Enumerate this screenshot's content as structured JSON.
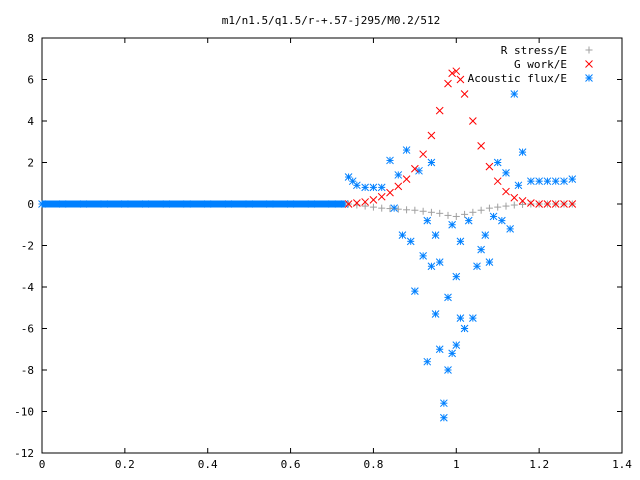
{
  "chart_data": {
    "type": "scatter",
    "title": "m1/n1.5/q1.5/r-+.57-j295/M0.2/512",
    "xlabel": "",
    "ylabel": "",
    "xlim": [
      0,
      1.4
    ],
    "ylim": [
      -12,
      8
    ],
    "x_ticks": [
      "0",
      "0.2",
      "0.4",
      "0.6",
      "0.8",
      "1",
      "1.2",
      "1.4"
    ],
    "y_ticks": [
      "8",
      "6",
      "4",
      "2",
      "0",
      "-2",
      "-4",
      "-6",
      "-8",
      "-10",
      "-12"
    ],
    "grid": false,
    "legend_position": "top-right",
    "series": [
      {
        "name": "R stress/E",
        "marker": "plus",
        "color": "#a0a0a0",
        "points": [
          [
            0.74,
            0.0
          ],
          [
            0.76,
            -0.05
          ],
          [
            0.78,
            -0.1
          ],
          [
            0.8,
            -0.15
          ],
          [
            0.82,
            -0.2
          ],
          [
            0.84,
            -0.22
          ],
          [
            0.86,
            -0.25
          ],
          [
            0.88,
            -0.28
          ],
          [
            0.9,
            -0.3
          ],
          [
            0.92,
            -0.35
          ],
          [
            0.94,
            -0.4
          ],
          [
            0.96,
            -0.45
          ],
          [
            0.98,
            -0.55
          ],
          [
            1.0,
            -0.6
          ],
          [
            1.02,
            -0.5
          ],
          [
            1.04,
            -0.4
          ],
          [
            1.06,
            -0.3
          ],
          [
            1.08,
            -0.2
          ],
          [
            1.1,
            -0.15
          ],
          [
            1.12,
            -0.1
          ],
          [
            1.14,
            -0.05
          ],
          [
            1.16,
            -0.02
          ],
          [
            1.18,
            0.0
          ],
          [
            1.2,
            0.0
          ],
          [
            1.22,
            0.0
          ],
          [
            1.24,
            0.0
          ],
          [
            1.26,
            0.0
          ],
          [
            1.28,
            0.0
          ]
        ]
      },
      {
        "name": "G work/E",
        "marker": "cross",
        "color": "#ff0000",
        "points": [
          [
            0.74,
            0.0
          ],
          [
            0.76,
            0.05
          ],
          [
            0.78,
            0.1
          ],
          [
            0.8,
            0.2
          ],
          [
            0.82,
            0.35
          ],
          [
            0.84,
            0.55
          ],
          [
            0.86,
            0.85
          ],
          [
            0.88,
            1.2
          ],
          [
            0.9,
            1.7
          ],
          [
            0.92,
            2.4
          ],
          [
            0.94,
            3.3
          ],
          [
            0.96,
            4.5
          ],
          [
            0.98,
            5.8
          ],
          [
            0.99,
            6.3
          ],
          [
            1.0,
            6.4
          ],
          [
            1.01,
            6.0
          ],
          [
            1.02,
            5.3
          ],
          [
            1.04,
            4.0
          ],
          [
            1.06,
            2.8
          ],
          [
            1.08,
            1.8
          ],
          [
            1.1,
            1.1
          ],
          [
            1.12,
            0.6
          ],
          [
            1.14,
            0.3
          ],
          [
            1.16,
            0.15
          ],
          [
            1.18,
            0.05
          ],
          [
            1.2,
            0.0
          ],
          [
            1.22,
            0.0
          ],
          [
            1.24,
            0.0
          ],
          [
            1.26,
            0.0
          ],
          [
            1.28,
            0.0
          ]
        ]
      },
      {
        "name": "Acoustic flux/E",
        "marker": "star",
        "color": "#0080ff",
        "points": [
          [
            0.0,
            0.0
          ],
          [
            0.05,
            0.0
          ],
          [
            0.1,
            0.0
          ],
          [
            0.15,
            0.0
          ],
          [
            0.2,
            0.0
          ],
          [
            0.25,
            0.0
          ],
          [
            0.3,
            0.0
          ],
          [
            0.35,
            0.0
          ],
          [
            0.4,
            0.0
          ],
          [
            0.45,
            0.0
          ],
          [
            0.5,
            0.0
          ],
          [
            0.55,
            0.0
          ],
          [
            0.6,
            0.0
          ],
          [
            0.65,
            0.0
          ],
          [
            0.7,
            0.0
          ],
          [
            0.73,
            0.0
          ],
          [
            0.74,
            1.3
          ],
          [
            0.75,
            1.1
          ],
          [
            0.76,
            0.9
          ],
          [
            0.78,
            0.8
          ],
          [
            0.8,
            0.8
          ],
          [
            0.82,
            0.8
          ],
          [
            0.84,
            2.1
          ],
          [
            0.85,
            -0.2
          ],
          [
            0.86,
            1.4
          ],
          [
            0.87,
            -1.5
          ],
          [
            0.88,
            2.6
          ],
          [
            0.89,
            -1.8
          ],
          [
            0.9,
            -4.2
          ],
          [
            0.91,
            1.6
          ],
          [
            0.92,
            -2.5
          ],
          [
            0.93,
            -7.6
          ],
          [
            0.93,
            -0.8
          ],
          [
            0.94,
            2.0
          ],
          [
            0.94,
            -3.0
          ],
          [
            0.95,
            -1.5
          ],
          [
            0.95,
            -5.3
          ],
          [
            0.96,
            -7.0
          ],
          [
            0.96,
            -2.8
          ],
          [
            0.97,
            -9.6
          ],
          [
            0.97,
            -10.3
          ],
          [
            0.98,
            -8.0
          ],
          [
            0.98,
            -4.5
          ],
          [
            0.99,
            -7.2
          ],
          [
            0.99,
            -1.0
          ],
          [
            1.0,
            -6.8
          ],
          [
            1.0,
            -3.5
          ],
          [
            1.01,
            -5.5
          ],
          [
            1.01,
            -1.8
          ],
          [
            1.02,
            -6.0
          ],
          [
            1.03,
            -0.8
          ],
          [
            1.04,
            -5.5
          ],
          [
            1.05,
            -3.0
          ],
          [
            1.06,
            -2.2
          ],
          [
            1.07,
            -1.5
          ],
          [
            1.08,
            -2.8
          ],
          [
            1.09,
            -0.6
          ],
          [
            1.1,
            2.0
          ],
          [
            1.11,
            -0.8
          ],
          [
            1.12,
            1.5
          ],
          [
            1.13,
            -1.2
          ],
          [
            1.14,
            5.3
          ],
          [
            1.15,
            0.9
          ],
          [
            1.16,
            2.5
          ],
          [
            1.18,
            1.1
          ],
          [
            1.2,
            1.1
          ],
          [
            1.22,
            1.1
          ],
          [
            1.24,
            1.1
          ],
          [
            1.26,
            1.1
          ],
          [
            1.28,
            1.2
          ]
        ]
      }
    ]
  }
}
